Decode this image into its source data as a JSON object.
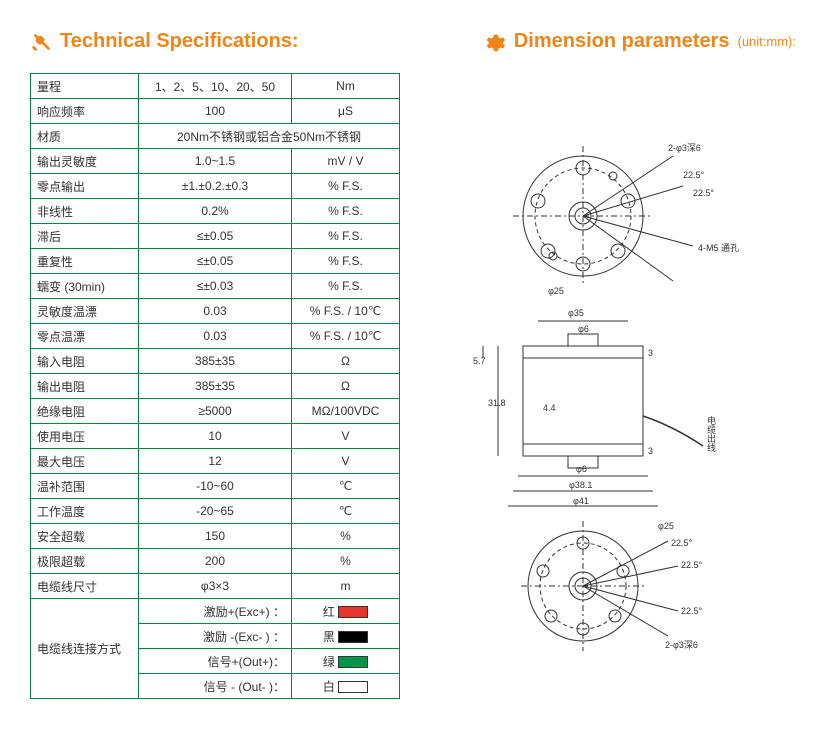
{
  "headings": {
    "tech": "Technical Specifications:",
    "dim": "Dimension parameters",
    "dim_unit": "(unit:mm):"
  },
  "rows": [
    {
      "label": "量程",
      "value": "1、2、5、10、20、50",
      "unit": "Nm"
    },
    {
      "label": "响应频率",
      "value": "100",
      "unit": "μS"
    },
    {
      "label": "材质",
      "value": "20Nm不锈钢或铝合金50Nm不锈钢",
      "unit": null,
      "span": true
    },
    {
      "label": "输出灵敏度",
      "value": "1.0~1.5",
      "unit": "mV / V"
    },
    {
      "label": "零点输出",
      "value": "±1.±0.2.±0.3",
      "unit": "% F.S."
    },
    {
      "label": "非线性",
      "value": "0.2%",
      "unit": "% F.S."
    },
    {
      "label": "滞后",
      "value": "≤±0.05",
      "unit": "% F.S."
    },
    {
      "label": "重复性",
      "value": "≤±0.05",
      "unit": "% F.S."
    },
    {
      "label": "蠕变 (30min)",
      "value": "≤±0.03",
      "unit": "% F.S."
    },
    {
      "label": "灵敏度温漂",
      "value": "0.03",
      "unit": "% F.S. / 10℃"
    },
    {
      "label": "零点温漂",
      "value": "0.03",
      "unit": "% F.S. / 10℃"
    },
    {
      "label": "输入电阻",
      "value": "385±35",
      "unit": "Ω"
    },
    {
      "label": "输出电阻",
      "value": "385±35",
      "unit": "Ω"
    },
    {
      "label": "绝缘电阻",
      "value": "≥5000",
      "unit": "MΩ/100VDC"
    },
    {
      "label": "使用电压",
      "value": "10",
      "unit": "V"
    },
    {
      "label": "最大电压",
      "value": "12",
      "unit": "V"
    },
    {
      "label": "温补范围",
      "value": "-10~60",
      "unit": "℃"
    },
    {
      "label": "工作温度",
      "value": "-20~65",
      "unit": "℃"
    },
    {
      "label": "安全超载",
      "value": "150",
      "unit": "%"
    },
    {
      "label": "极限超载",
      "value": "200",
      "unit": "%"
    },
    {
      "label": "电缆线尺寸",
      "value": "φ3×3",
      "unit": "m"
    }
  ],
  "cable": {
    "label": "电缆线连接方式",
    "items": [
      {
        "text": "激励+(Exc+) ：",
        "name": "红",
        "color": "#E7352B"
      },
      {
        "text": "激励 -(Exc- ) ：",
        "name": "黑",
        "color": "#000000"
      },
      {
        "text": "信号+(Out+)：",
        "name": "绿",
        "color": "#009547"
      },
      {
        "text": "信号 - (Out- )：",
        "name": "白",
        "color": "#FFFFFF"
      }
    ]
  },
  "dims": {
    "top_angles": [
      "22.5°",
      "22.5°"
    ],
    "top_labels": [
      "2-φ3深6",
      "4-M5 通孔",
      "φ25"
    ],
    "side": [
      "φ35",
      "φ6",
      "5.7",
      "31.8",
      "4.4",
      "3",
      "3",
      "φ6",
      "φ38.1",
      "φ41",
      "电缆出线"
    ],
    "bot_angles": [
      "22.5°",
      "22.5°"
    ],
    "bot_labels": [
      "φ25",
      "2-φ3深6"
    ]
  },
  "colors": {
    "accent": "#F08519",
    "border": "#008445",
    "dim_line": "#333"
  }
}
